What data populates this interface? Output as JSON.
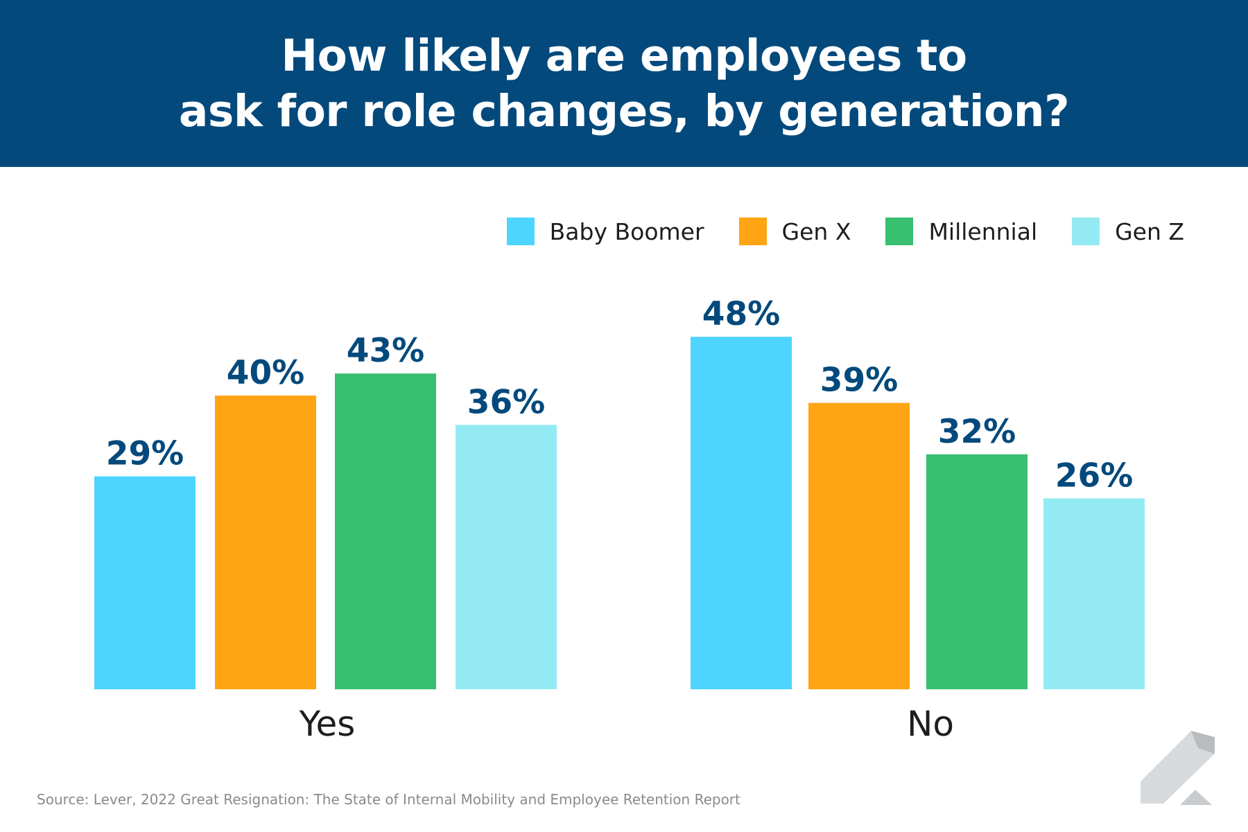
{
  "header": {
    "title_line1": "How likely are employees to",
    "title_line2": "ask for role changes, by generation?"
  },
  "legend": [
    {
      "label": "Baby Boomer",
      "color": "#4dd4ff"
    },
    {
      "label": "Gen X",
      "color": "#ffa412"
    },
    {
      "label": "Millennial",
      "color": "#38bf6f"
    },
    {
      "label": "Gen Z",
      "color": "#94eaf2"
    }
  ],
  "chart_data": {
    "type": "bar",
    "title": "How likely are employees to ask for role changes, by generation?",
    "categories": [
      "Yes",
      "No"
    ],
    "series": [
      {
        "name": "Baby Boomer",
        "values": [
          29,
          48
        ],
        "labels": [
          "29%",
          "48%"
        ],
        "color": "#4dd4ff"
      },
      {
        "name": "Gen X",
        "values": [
          40,
          39
        ],
        "labels": [
          "40%",
          "39%"
        ],
        "color": "#ffa412"
      },
      {
        "name": "Millennial",
        "values": [
          43,
          32
        ],
        "labels": [
          "43%",
          "32%"
        ],
        "color": "#38bf6f"
      },
      {
        "name": "Gen Z",
        "values": [
          36,
          26
        ],
        "labels": [
          "36%",
          "26%"
        ],
        "color": "#94eaf2"
      }
    ],
    "xlabel": "",
    "ylabel": "",
    "ylim": [
      0,
      48
    ],
    "grid": false,
    "legend_position": "top-right"
  },
  "source": "Source: Lever, 2022 Great Resignation: The State of Internal Mobility and Employee Retention Report",
  "logo": {
    "icon": "lever-logo-icon"
  }
}
